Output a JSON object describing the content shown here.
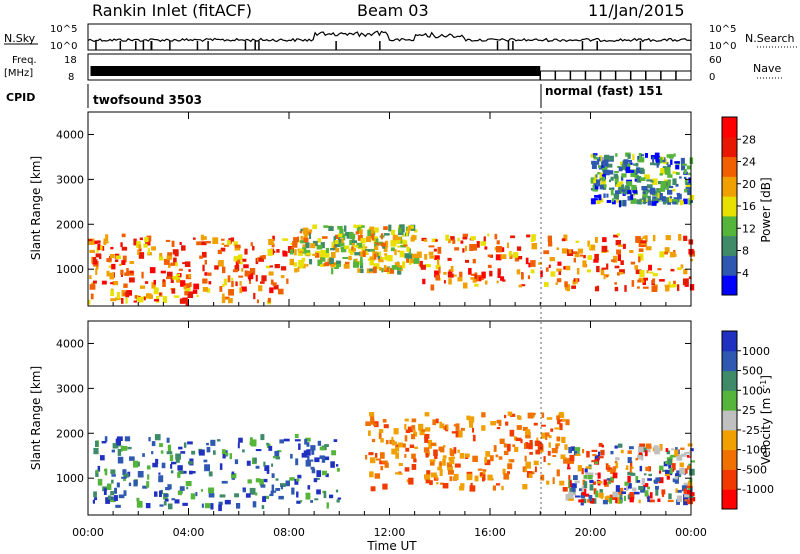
{
  "header": {
    "station": "Rankin Inlet (fitACF)",
    "beam": "Beam 03",
    "date": "11/Jan/2015"
  },
  "top_panels": {
    "nsky_label": "N.Sky",
    "nsearch_label": "N.Search",
    "nsky_ticks": [
      "10^5",
      "10^0"
    ],
    "nsearch_ticks": [
      "10^5",
      "10^0"
    ],
    "freq_label_line1": "Freq.",
    "freq_label_line2": "[MHz]",
    "freq_ticks": [
      "18",
      "8"
    ],
    "nave_label": "Nave",
    "nave_ticks": [
      "60",
      "0"
    ],
    "cpid_label": "CPID",
    "cpid_modes": [
      {
        "label": "twofsound 3503",
        "start_hour": 0,
        "end_hour": 18
      },
      {
        "label": "normal (fast) 151",
        "start_hour": 18,
        "end_hour": 24
      }
    ]
  },
  "colors": {
    "power_scale": [
      "#0000ff",
      "#2f58b0",
      "#3f8a68",
      "#55b53a",
      "#e8e000",
      "#f0a000",
      "#f06000",
      "#e81800",
      "#ff0000"
    ],
    "velocity_scale": [
      "#2030c0",
      "#2f58b0",
      "#3f8a68",
      "#55b53a",
      "#c0c0c0",
      "#f0a000",
      "#f07000",
      "#f03a00",
      "#ff0000"
    ]
  },
  "chart_data": [
    {
      "type": "heatmap",
      "name": "power",
      "ylabel": "Slant Range [km]",
      "xlabel": "Time UT",
      "x_range_hours": [
        0,
        24
      ],
      "ylim": [
        180,
        4500
      ],
      "y_ticks": [
        1000,
        2000,
        3000,
        4000
      ],
      "x_tick_labels": [
        "00:00",
        "04:00",
        "08:00",
        "12:00",
        "16:00",
        "20:00",
        "00:00"
      ],
      "colorbar": {
        "label": "Power [dB]",
        "ticks": [
          "4",
          "8",
          "12",
          "16",
          "20",
          "24",
          "28"
        ],
        "range": [
          0,
          30
        ]
      },
      "features": [
        {
          "hours": [
            0,
            8
          ],
          "range_km": [
            300,
            1800
          ],
          "level": "high",
          "desc_code": "near-range echoes"
        },
        {
          "hours": [
            8,
            13
          ],
          "range_km": [
            1000,
            2000
          ],
          "level": "medium"
        },
        {
          "hours": [
            13,
            24
          ],
          "range_km": [
            600,
            1800
          ],
          "level": "high"
        },
        {
          "hours": [
            20,
            24
          ],
          "range_km": [
            2500,
            3600
          ],
          "level": "low"
        }
      ]
    },
    {
      "type": "heatmap",
      "name": "velocity",
      "ylabel": "Slant Range [km]",
      "xlabel": "Time UT",
      "x_range_hours": [
        0,
        24
      ],
      "ylim": [
        180,
        4500
      ],
      "y_ticks": [
        1000,
        2000,
        3000,
        4000
      ],
      "x_tick_labels": [
        "00:00",
        "04:00",
        "08:00",
        "12:00",
        "16:00",
        "20:00",
        "00:00"
      ],
      "colorbar": {
        "label": "Velocity [m s^-1]",
        "ticks": [
          "1000",
          "500",
          "100",
          "25",
          "-25",
          "-100",
          "-500",
          "-1000"
        ]
      },
      "features": [
        {
          "hours": [
            0,
            10
          ],
          "range_km": [
            400,
            2000
          ],
          "velocity_sign": "positive"
        },
        {
          "hours": [
            11,
            19
          ],
          "range_km": [
            800,
            2500
          ],
          "velocity_sign": "negative"
        },
        {
          "hours": [
            19,
            24
          ],
          "range_km": [
            500,
            1800
          ],
          "velocity_sign": "mixed"
        }
      ]
    }
  ]
}
